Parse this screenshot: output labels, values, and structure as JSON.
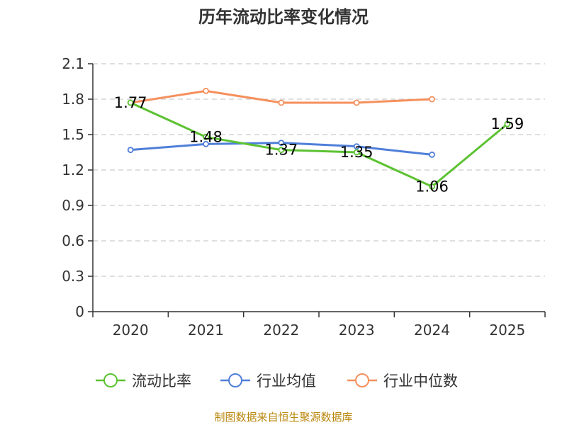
{
  "chart_data": {
    "type": "line",
    "title": "历年流动比率变化情况",
    "categories": [
      "2020",
      "2021",
      "2022",
      "2023",
      "2024",
      "2025"
    ],
    "ylim": [
      0,
      2.1
    ],
    "yticks": [
      "0",
      "0.3",
      "0.6",
      "0.9",
      "1.2",
      "1.5",
      "1.8",
      "2.1"
    ],
    "grid": true,
    "legend_position": "bottom",
    "series": [
      {
        "name": "流动比率",
        "color": "#5cc232",
        "values": [
          1.77,
          1.48,
          1.37,
          1.35,
          1.06,
          1.59
        ],
        "labels": [
          "1.77",
          "1.48",
          "1.37",
          "1.35",
          "1.06",
          "1.59"
        ]
      },
      {
        "name": "行业均值",
        "color": "#4f7fd9",
        "values": [
          1.37,
          1.42,
          1.43,
          1.4,
          1.33,
          null
        ]
      },
      {
        "name": "行业中位数",
        "color": "#f5905d",
        "values": [
          1.77,
          1.87,
          1.77,
          1.77,
          1.8,
          null
        ]
      }
    ],
    "source": "制图数据来自恒生聚源数据库"
  }
}
